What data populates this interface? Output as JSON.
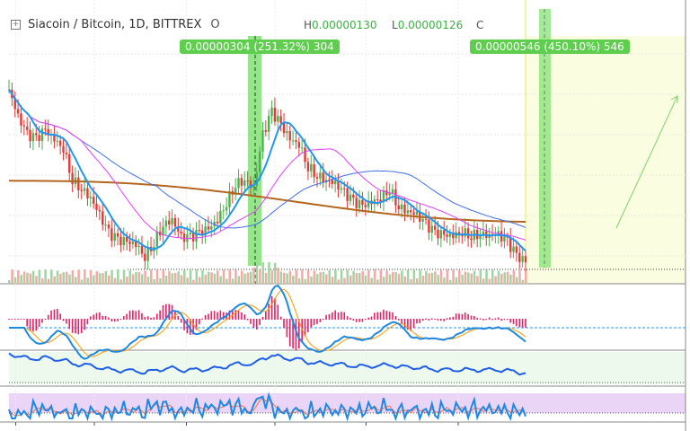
{
  "header": {
    "symbol": "Siacoin / Bitcoin, 1D, BITTREX",
    "open_label": "O",
    "high_label": "H",
    "high_value": "0.00000130",
    "low_label": "L",
    "low_value": "0.00000126",
    "close_label": "C"
  },
  "measure_labels": [
    "0.00000304 (251.32%) 304",
    "0.00000546 (450.10%) 546"
  ],
  "colors": {
    "up": "#4caf50",
    "down": "#e53935",
    "ma_fast": "#2196f3",
    "ma_mid": "#e040fb",
    "ma_slow": "#3f6ee8",
    "ma_long": "#b5651d",
    "projection": "#fbfde0",
    "highlight": "#66dd55"
  },
  "chart_data": {
    "type": "candlestick",
    "indicators": [
      "moving averages",
      "volume",
      "MACD",
      "oscillator",
      "stochastic RSI"
    ],
    "grid": true,
    "close": [
      4.05e-06,
      3.62e-06,
      3.33e-06,
      3.26e-06,
      3.4e-06,
      3.26e-06,
      3.12e-06,
      2.62e-06,
      2.48e-06,
      2.33e-06,
      2.05e-06,
      1.76e-06,
      1.65e-06,
      1.62e-06,
      1.59e-06,
      1.4e-06,
      1.62e-06,
      1.9e-06,
      1.98e-06,
      1.69e-06,
      1.69e-06,
      1.76e-06,
      1.83e-06,
      1.98e-06,
      2.26e-06,
      2.55e-06,
      2.62e-06,
      2.48e-06,
      3.33e-06,
      3.69e-06,
      3.48e-06,
      3.26e-06,
      3.19e-06,
      2.83e-06,
      2.69e-06,
      2.62e-06,
      2.55e-06,
      2.4e-06,
      2.26e-06,
      2.19e-06,
      2.26e-06,
      2.33e-06,
      2.48e-06,
      2.19e-06,
      2.12e-06,
      2.05e-06,
      1.9e-06,
      1.76e-06,
      1.73e-06,
      1.73e-06,
      1.79e-06,
      1.73e-06,
      1.76e-06,
      1.73e-06,
      1.73e-06,
      1.62e-06,
      1.4e-06,
      1.3e-06
    ]
  }
}
